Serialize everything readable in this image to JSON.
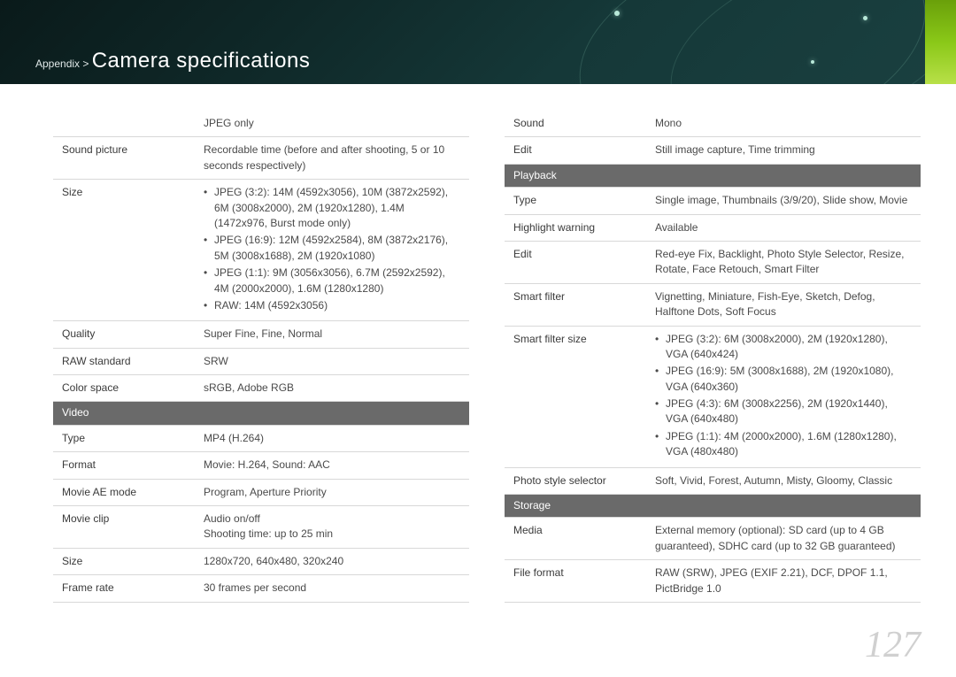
{
  "header": {
    "breadcrumb_prefix": "Appendix > ",
    "title": "Camera specifications",
    "accent_color": "#8ac818",
    "bg_gradient": [
      "#0a1a1a",
      "#1a4040"
    ]
  },
  "page_number": "127",
  "left_table": {
    "rows": [
      {
        "label": "",
        "value": "JPEG only"
      },
      {
        "label": "Sound picture",
        "value": "Recordable time (before and after shooting, 5 or 10 seconds respectively)"
      },
      {
        "label": "Size",
        "bullets": [
          "JPEG (3:2): 14M (4592x3056), 10M (3872x2592), 6M (3008x2000), 2M (1920x1280), 1.4M (1472x976, Burst mode only)",
          "JPEG (16:9): 12M (4592x2584), 8M (3872x2176), 5M (3008x1688), 2M (1920x1080)",
          "JPEG (1:1): 9M (3056x3056), 6.7M (2592x2592), 4M (2000x2000), 1.6M (1280x1280)",
          "RAW: 14M (4592x3056)"
        ]
      },
      {
        "label": "Quality",
        "value": "Super Fine, Fine, Normal"
      },
      {
        "label": "RAW standard",
        "value": "SRW"
      },
      {
        "label": "Color space",
        "value": "sRGB, Adobe RGB"
      },
      {
        "section": "Video"
      },
      {
        "label": "Type",
        "value": "MP4 (H.264)"
      },
      {
        "label": "Format",
        "value": "Movie: H.264, Sound: AAC"
      },
      {
        "label": "Movie AE mode",
        "value": "Program, Aperture Priority"
      },
      {
        "label": "Movie clip",
        "value": "Audio on/off\nShooting time: up to 25 min"
      },
      {
        "label": "Size",
        "value": "1280x720, 640x480, 320x240"
      },
      {
        "label": "Frame rate",
        "value": "30 frames per second"
      }
    ]
  },
  "right_table": {
    "rows": [
      {
        "label": "Sound",
        "value": "Mono"
      },
      {
        "label": "Edit",
        "value": "Still image capture, Time trimming"
      },
      {
        "section": "Playback"
      },
      {
        "label": "Type",
        "value": "Single image, Thumbnails (3/9/20), Slide show, Movie"
      },
      {
        "label": "Highlight warning",
        "value": "Available"
      },
      {
        "label": "Edit",
        "value": "Red-eye Fix, Backlight, Photo Style Selector, Resize, Rotate, Face Retouch, Smart Filter"
      },
      {
        "label": "Smart filter",
        "value": "Vignetting, Miniature, Fish-Eye, Sketch, Defog, Halftone Dots, Soft Focus"
      },
      {
        "label": "Smart filter size",
        "bullets": [
          "JPEG (3:2): 6M (3008x2000), 2M (1920x1280), VGA (640x424)",
          "JPEG (16:9): 5M (3008x1688), 2M (1920x1080), VGA (640x360)",
          "JPEG (4:3): 6M (3008x2256), 2M (1920x1440), VGA (640x480)",
          "JPEG (1:1): 4M (2000x2000), 1.6M (1280x1280), VGA (480x480)"
        ]
      },
      {
        "label": "Photo style selector",
        "value": "Soft, Vivid, Forest, Autumn, Misty, Gloomy, Classic"
      },
      {
        "section": "Storage"
      },
      {
        "label": "Media",
        "value": "External memory (optional): SD card (up to 4 GB guaranteed), SDHC card (up to 32 GB guaranteed)"
      },
      {
        "label": "File format",
        "value": "RAW (SRW), JPEG (EXIF 2.21), DCF, DPOF 1.1, PictBridge 1.0"
      }
    ]
  },
  "colors": {
    "section_bg": "#6a6a6a",
    "border": "#d8d8d8",
    "text": "#4a4a4a",
    "pagenum": "#d0d0d0"
  }
}
